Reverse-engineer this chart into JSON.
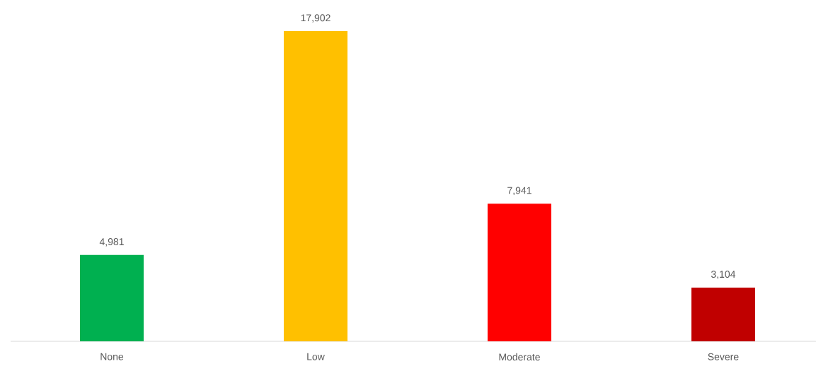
{
  "chart_data": {
    "type": "bar",
    "categories": [
      "None",
      "Low",
      "Moderate",
      "Severe"
    ],
    "values": [
      4981,
      17902,
      7941,
      3104
    ],
    "colors": [
      "#00b050",
      "#ffc000",
      "#ff0000",
      "#c00000"
    ],
    "value_labels": [
      "4,981",
      "17,902",
      "7,941",
      "3,104"
    ]
  }
}
